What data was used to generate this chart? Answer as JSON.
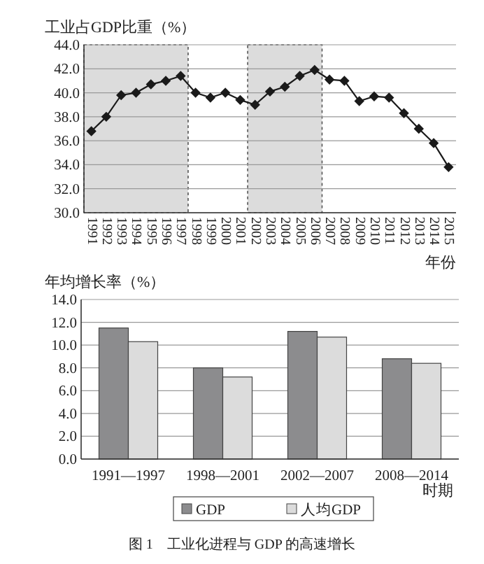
{
  "chart_data": [
    {
      "type": "line",
      "ylabel": "工业占GDP比重（%）",
      "xlabel": "年份",
      "categories": [
        "1991",
        "1992",
        "1993",
        "1994",
        "1995",
        "1996",
        "1997",
        "1998",
        "1999",
        "2000",
        "2001",
        "2002",
        "2003",
        "2004",
        "2005",
        "2006",
        "2007",
        "2008",
        "2009",
        "2010",
        "2011",
        "2012",
        "2013",
        "2014",
        "2015"
      ],
      "series": [
        {
          "color": "#1a1a1a",
          "values": [
            36.8,
            38.0,
            39.8,
            40.0,
            40.7,
            41.0,
            41.4,
            40.0,
            39.6,
            40.0,
            39.4,
            39.0,
            40.1,
            40.5,
            41.4,
            41.9,
            41.1,
            41.0,
            39.3,
            39.7,
            39.6,
            38.3,
            37.0,
            35.8,
            33.8
          ]
        }
      ],
      "marker": "diamond",
      "line_style": "solid",
      "ylim": [
        30,
        44
      ],
      "yticks": [
        {
          "value": 30,
          "label": "30.0"
        },
        {
          "value": 32,
          "label": "32.0"
        },
        {
          "value": 34,
          "label": "34.0"
        },
        {
          "value": 36,
          "label": "36.0"
        },
        {
          "value": 38,
          "label": "38.0"
        },
        {
          "value": 40,
          "label": "40.0"
        },
        {
          "value": 42,
          "label": "42.0"
        },
        {
          "value": 44,
          "label": "44.0"
        }
      ],
      "grid": "y",
      "bands": [
        {
          "axis": "x",
          "from": "1991",
          "to": "1997",
          "color": "#dcdcdc"
        },
        {
          "axis": "x",
          "from": "2002",
          "to": "2006",
          "color": "#dcdcdc"
        }
      ]
    },
    {
      "type": "bar",
      "ylabel": "年均增长率（%）",
      "xlabel": "时期",
      "categories": [
        "1991—1997",
        "1998—2001",
        "2002—2007",
        "2008—2014"
      ],
      "series": [
        {
          "name": "GDP",
          "color": "#8c8c8e",
          "values": [
            11.5,
            8.0,
            11.2,
            8.8
          ]
        },
        {
          "name": "人均GDP",
          "color": "#dcdcdc",
          "values": [
            10.3,
            7.2,
            10.7,
            8.4
          ]
        }
      ],
      "ylim": [
        0,
        14
      ],
      "yticks": [
        {
          "value": 0,
          "label": "0.0"
        },
        {
          "value": 2,
          "label": "2.0"
        },
        {
          "value": 4,
          "label": "4.0"
        },
        {
          "value": 6,
          "label": "6.0"
        },
        {
          "value": 8,
          "label": "8.0"
        },
        {
          "value": 10,
          "label": "10.0"
        },
        {
          "value": 12,
          "label": "12.0"
        },
        {
          "value": 14,
          "label": "14.0"
        }
      ],
      "grid": "y",
      "legend": "bottom",
      "annotations": [
        "图 1　工业化进程与 GDP 的高速增长"
      ]
    }
  ]
}
